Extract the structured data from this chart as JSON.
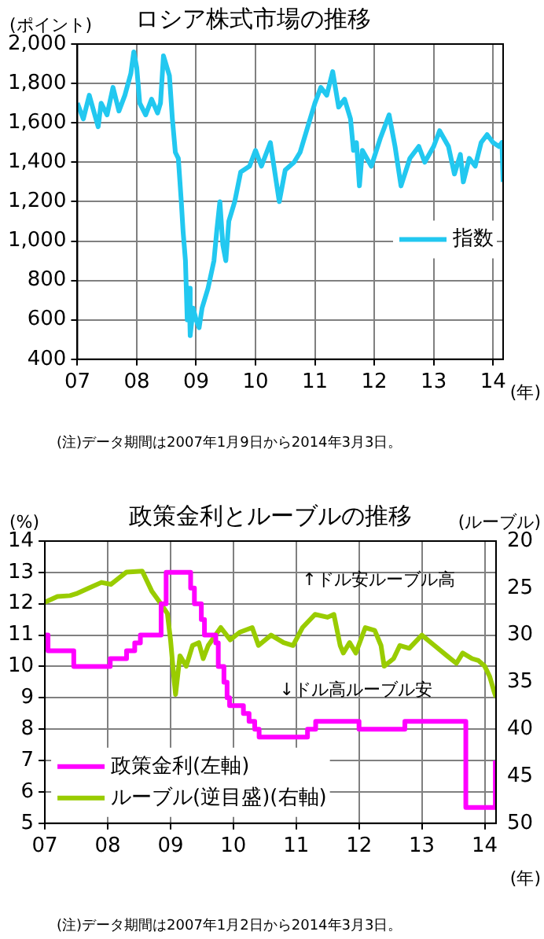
{
  "chart_data": [
    {
      "type": "line",
      "title": "ロシア株式市場の推移",
      "ylabel": "(ポイント)",
      "xlabel": "(年)",
      "annotations": [
        "(注)データ期間は2007年1月9日から2014年3月3日。"
      ],
      "x": [
        2007.0,
        2007.1,
        2007.2,
        2007.35,
        2007.4,
        2007.5,
        2007.6,
        2007.7,
        2007.8,
        2007.9,
        2007.95,
        2008.0,
        2008.05,
        2008.15,
        2008.25,
        2008.35,
        2008.4,
        2008.45,
        2008.55,
        2008.6,
        2008.65,
        2008.7,
        2008.75,
        2008.78,
        2008.82,
        2008.85,
        2008.88,
        2008.9,
        2008.95,
        2009.0,
        2009.05,
        2009.1,
        2009.2,
        2009.3,
        2009.35,
        2009.4,
        2009.45,
        2009.5,
        2009.55,
        2009.65,
        2009.75,
        2009.9,
        2010.0,
        2010.1,
        2010.25,
        2010.35,
        2010.4,
        2010.5,
        2010.65,
        2010.75,
        2010.9,
        2011.0,
        2011.1,
        2011.2,
        2011.3,
        2011.4,
        2011.5,
        2011.6,
        2011.65,
        2011.7,
        2011.75,
        2011.8,
        2011.95,
        2012.1,
        2012.25,
        2012.35,
        2012.45,
        2012.6,
        2012.75,
        2012.85,
        2013.0,
        2013.1,
        2013.25,
        2013.35,
        2013.45,
        2013.5,
        2013.6,
        2013.7,
        2013.8,
        2013.9,
        2014.0,
        2014.1,
        2014.15,
        2014.17
      ],
      "series": [
        {
          "name": "指数",
          "color": "#22c8f0",
          "values": [
            1700,
            1620,
            1740,
            1580,
            1700,
            1640,
            1780,
            1660,
            1740,
            1850,
            1960,
            1880,
            1700,
            1640,
            1720,
            1650,
            1700,
            1940,
            1840,
            1620,
            1450,
            1420,
            1200,
            1050,
            900,
            600,
            760,
            520,
            660,
            600,
            560,
            660,
            760,
            900,
            1060,
            1200,
            980,
            900,
            1100,
            1200,
            1350,
            1380,
            1460,
            1380,
            1500,
            1300,
            1200,
            1360,
            1400,
            1450,
            1600,
            1700,
            1780,
            1740,
            1860,
            1680,
            1720,
            1620,
            1460,
            1500,
            1280,
            1460,
            1380,
            1520,
            1640,
            1480,
            1280,
            1420,
            1480,
            1400,
            1480,
            1560,
            1480,
            1340,
            1440,
            1300,
            1420,
            1380,
            1500,
            1540,
            1500,
            1480,
            1500,
            1300
          ]
        }
      ],
      "xlim": [
        2007,
        2014.17
      ],
      "xticks": [
        {
          "value": 2007,
          "label": "07"
        },
        {
          "value": 2008,
          "label": "08"
        },
        {
          "value": 2009,
          "label": "09"
        },
        {
          "value": 2010,
          "label": "10"
        },
        {
          "value": 2011,
          "label": "11"
        },
        {
          "value": 2012,
          "label": "12"
        },
        {
          "value": 2013,
          "label": "13"
        },
        {
          "value": 2014,
          "label": "14"
        }
      ],
      "ylim": [
        400,
        2000
      ],
      "yticks": [
        400,
        600,
        800,
        {
          "value": 1000,
          "label": "1,000"
        },
        {
          "value": 1200,
          "label": "1,200"
        },
        {
          "value": 1400,
          "label": "1,400"
        },
        {
          "value": 1600,
          "label": "1,600"
        },
        {
          "value": 1800,
          "label": "1,800"
        },
        {
          "value": 2000,
          "label": "2,000"
        }
      ],
      "grid": true,
      "legend": "right"
    },
    {
      "type": "line",
      "title": "政策金利とルーブルの推移",
      "ylabel": "(%)",
      "y2label": "(ルーブル)",
      "xlabel": "(年)",
      "annotations": [
        "↑ドル安ルーブル高",
        "↓ドル高ルーブル安",
        "(注)データ期間は2007年1月2日から2014年3月3日。"
      ],
      "series": [
        {
          "name": "政策金利(左軸)",
          "type": "step",
          "color": "#ff00ff",
          "x": [
            2007.0,
            2007.05,
            2007.46,
            2008.04,
            2008.3,
            2008.43,
            2008.52,
            2008.85,
            2008.93,
            2009.32,
            2009.38,
            2009.49,
            2009.54,
            2009.72,
            2009.76,
            2009.85,
            2009.9,
            2009.94,
            2010.16,
            2010.25,
            2010.34,
            2010.41,
            2011.18,
            2011.31,
            2012.0,
            2012.73,
            2013.7,
            2014.17
          ],
          "values": [
            11,
            10.5,
            10,
            10.25,
            10.5,
            10.75,
            11,
            12,
            13,
            12.5,
            12,
            11.5,
            11,
            10.75,
            10,
            9.5,
            9,
            8.75,
            8.5,
            8.25,
            8,
            7.75,
            8,
            8.25,
            8,
            8.25,
            5.5,
            7
          ]
        },
        {
          "name": "ルーブル(逆目盛)(右軸)",
          "type": "line",
          "axis": "y2",
          "color": "#99cc00",
          "x": [
            2007.0,
            2007.2,
            2007.4,
            2007.5,
            2007.7,
            2007.9,
            2008.05,
            2008.3,
            2008.55,
            2008.7,
            2008.85,
            2008.95,
            2009.0,
            2009.06,
            2009.08,
            2009.15,
            2009.25,
            2009.35,
            2009.45,
            2009.52,
            2009.6,
            2009.8,
            2009.95,
            2010.1,
            2010.3,
            2010.4,
            2010.6,
            2010.8,
            2010.95,
            2011.1,
            2011.3,
            2011.5,
            2011.6,
            2011.7,
            2011.75,
            2011.85,
            2011.95,
            2012.1,
            2012.25,
            2012.35,
            2012.4,
            2012.55,
            2012.65,
            2012.8,
            2013.0,
            2013.2,
            2013.4,
            2013.55,
            2013.65,
            2013.8,
            2013.9,
            2014.0,
            2014.08,
            2014.15,
            2014.18
          ],
          "values": [
            26.5,
            25.9,
            25.8,
            25.6,
            25,
            24.4,
            24.6,
            23.3,
            23.2,
            25.3,
            26.7,
            27.7,
            30.5,
            35,
            36.3,
            32.2,
            33.3,
            31.1,
            30.8,
            32.5,
            31.1,
            29.2,
            30.5,
            29.7,
            29.2,
            31.1,
            30,
            30.8,
            31.1,
            29.2,
            27.8,
            28.1,
            27.8,
            31.1,
            31.9,
            30.8,
            31.9,
            29.2,
            29.5,
            31.1,
            33.3,
            32.5,
            31.1,
            31.4,
            30,
            31.1,
            32.2,
            33,
            31.9,
            32.5,
            32.7,
            33.3,
            34.4,
            36,
            36.6
          ]
        }
      ],
      "xlim": [
        2007,
        2014.18
      ],
      "xticks": [
        {
          "value": 2007,
          "label": "07"
        },
        {
          "value": 2008,
          "label": "08"
        },
        {
          "value": 2009,
          "label": "09"
        },
        {
          "value": 2010,
          "label": "10"
        },
        {
          "value": 2011,
          "label": "11"
        },
        {
          "value": 2012,
          "label": "12"
        },
        {
          "value": 2013,
          "label": "13"
        },
        {
          "value": 2014,
          "label": "14"
        }
      ],
      "ylim": [
        5,
        14
      ],
      "yticks": [
        5,
        6,
        7,
        8,
        9,
        10,
        11,
        12,
        13,
        14
      ],
      "y2lim": [
        50,
        20
      ],
      "y2ticks": [
        20,
        25,
        30,
        35,
        40,
        45,
        50
      ],
      "grid": true,
      "legend": "bottom left"
    }
  ]
}
